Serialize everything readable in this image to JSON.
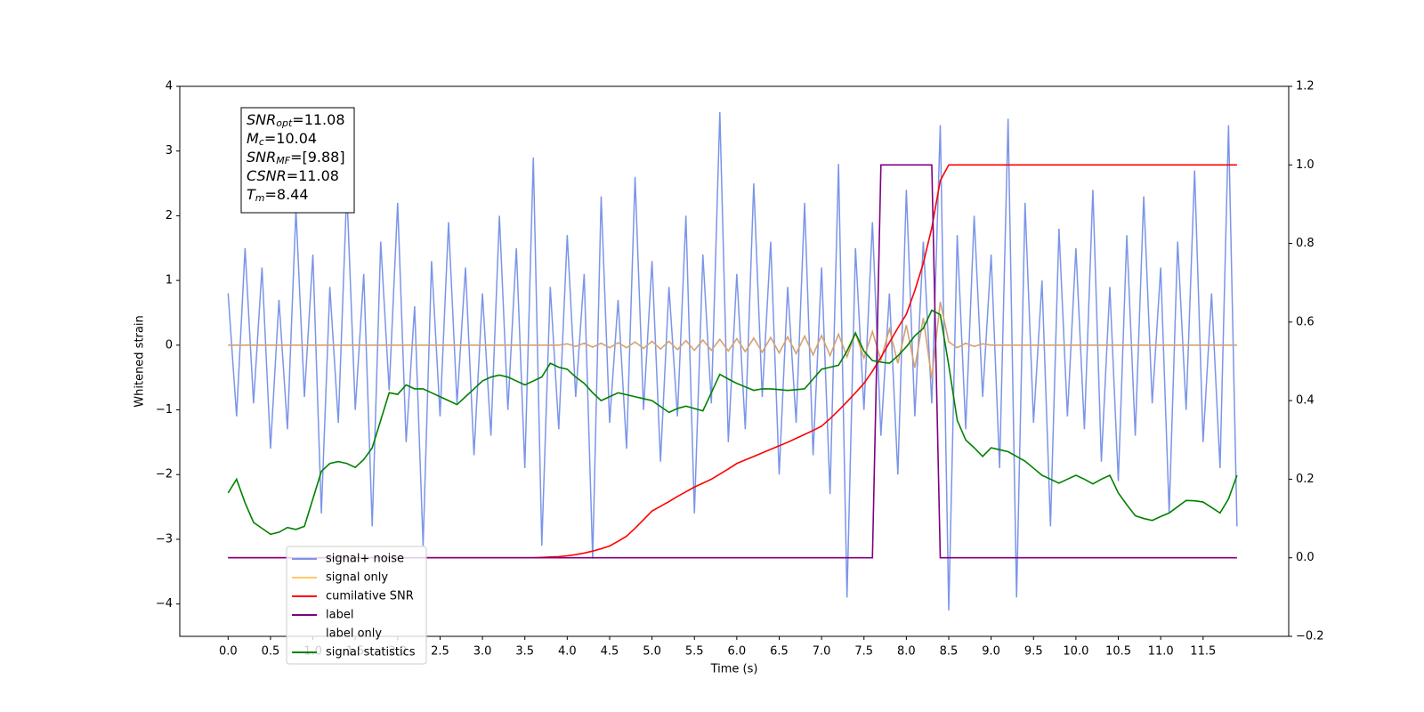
{
  "chart_data": {
    "type": "line",
    "xlabel": "Time (s)",
    "ylabel": "Whitened strain",
    "xlim": [
      -0.57,
      12.51
    ],
    "ylim": [
      -4.5,
      4
    ],
    "y2lim": [
      -0.2,
      1.2
    ],
    "xticks": [
      {
        "value": 0,
        "label": "0.0"
      },
      0.5,
      {
        "value": 1,
        "label": "1.0"
      },
      1.5,
      {
        "value": 2,
        "label": "2.0"
      },
      2.5,
      {
        "value": 3,
        "label": "3.0"
      },
      3.5,
      {
        "value": 4,
        "label": "4.0"
      },
      4.5,
      {
        "value": 5,
        "label": "5.0"
      },
      5.5,
      {
        "value": 6,
        "label": "6.0"
      },
      6.5,
      {
        "value": 7,
        "label": "7.0"
      },
      7.5,
      {
        "value": 8,
        "label": "8.0"
      },
      8.5,
      {
        "value": 9,
        "label": "9.0"
      },
      9.5,
      {
        "value": 10,
        "label": "10.0"
      },
      10.5,
      {
        "value": 11,
        "label": "11.0"
      },
      11.5
    ],
    "yticks": [
      {
        "value": -4,
        "label": "−4"
      },
      {
        "value": -3,
        "label": "−3"
      },
      {
        "value": -2,
        "label": "−2"
      },
      {
        "value": -1,
        "label": "−1"
      },
      0,
      1,
      2,
      3,
      4
    ],
    "y2ticks": [
      {
        "value": -0.2,
        "label": "−0.2"
      },
      {
        "value": 0,
        "label": "0.0"
      },
      0.2,
      0.4,
      0.6,
      0.8,
      {
        "value": 1,
        "label": "1.0"
      },
      1.2
    ],
    "annotations": [
      {
        "text": "SNR",
        "sub": "opt",
        "value": "=11.08"
      },
      {
        "text": "M",
        "sub": "c",
        "value": "=10.04"
      },
      {
        "text": "SNR",
        "sub": "MF",
        "value": "=[9.88]"
      },
      {
        "text": "CSNR",
        "value": "=11.08"
      },
      {
        "text": "T",
        "sub": "m",
        "value": "=8.44"
      }
    ],
    "legend": "lower left",
    "legend_only": [
      "label only"
    ],
    "x": [
      0,
      0.1,
      0.2,
      0.3,
      0.4,
      0.5,
      0.6,
      0.7,
      0.8,
      0.9,
      1,
      1.1,
      1.2,
      1.3,
      1.4,
      1.5,
      1.6,
      1.7,
      1.8,
      1.9,
      2,
      2.1,
      2.2,
      2.3,
      2.4,
      2.5,
      2.6,
      2.7,
      2.8,
      2.9,
      3,
      3.1,
      3.2,
      3.3,
      3.4,
      3.5,
      3.6,
      3.7,
      3.8,
      3.9,
      4,
      4.1,
      4.2,
      4.3,
      4.4,
      4.5,
      4.6,
      4.7,
      4.8,
      4.9,
      5,
      5.1,
      5.2,
      5.3,
      5.4,
      5.5,
      5.6,
      5.7,
      5.8,
      5.9,
      6,
      6.1,
      6.2,
      6.3,
      6.4,
      6.5,
      6.6,
      6.7,
      6.8,
      6.9,
      7,
      7.1,
      7.2,
      7.3,
      7.4,
      7.5,
      7.6,
      7.7,
      7.8,
      7.9,
      8,
      8.1,
      8.2,
      8.3,
      8.4,
      8.5,
      8.6,
      8.7,
      8.8,
      8.9,
      9,
      9.1,
      9.2,
      9.3,
      9.4,
      9.5,
      9.6,
      9.7,
      9.8,
      9.9,
      10,
      10.1,
      10.2,
      10.3,
      10.4,
      10.5,
      10.6,
      10.7,
      10.8,
      10.9,
      11,
      11.1,
      11.2,
      11.3,
      11.4,
      11.5,
      11.6,
      11.7,
      11.8,
      11.9
    ],
    "series": [
      {
        "name": "signal+ noise",
        "color": "#7b95e8",
        "axis": "y",
        "values": [
          0.8,
          -1.1,
          1.5,
          -0.9,
          1.2,
          -1.6,
          0.7,
          -1.3,
          2.1,
          -0.8,
          1.4,
          -2.6,
          0.9,
          -1.2,
          2.4,
          -1.0,
          1.1,
          -2.8,
          1.6,
          -0.7,
          2.2,
          -1.5,
          0.6,
          -3.1,
          1.3,
          -1.1,
          1.9,
          -0.9,
          1.2,
          -1.7,
          0.8,
          -1.4,
          2.0,
          -1.0,
          1.5,
          -1.9,
          2.9,
          -3.1,
          0.9,
          -1.3,
          1.7,
          -0.8,
          1.1,
          -3.3,
          2.3,
          -1.2,
          0.7,
          -1.6,
          2.6,
          -1.0,
          1.3,
          -1.8,
          0.9,
          -1.1,
          2.0,
          -2.6,
          1.4,
          -0.9,
          3.6,
          -1.5,
          1.1,
          -1.3,
          2.5,
          -0.8,
          1.6,
          -2.0,
          0.9,
          -1.2,
          2.2,
          -1.7,
          1.2,
          -2.3,
          2.8,
          -3.9,
          1.5,
          -1.0,
          1.9,
          -1.4,
          0.8,
          -2.0,
          2.4,
          -1.1,
          1.6,
          -0.9,
          3.4,
          -4.1,
          1.7,
          -1.3,
          2.0,
          -0.8,
          1.4,
          -1.9,
          3.5,
          -3.9,
          2.2,
          -1.2,
          1.0,
          -2.8,
          1.8,
          -1.1,
          1.5,
          -1.3,
          2.4,
          -1.8,
          0.9,
          -2.1,
          1.7,
          -1.4,
          2.3,
          -0.9,
          1.2,
          -2.6,
          1.6,
          -1.0,
          2.7,
          -1.5,
          0.8,
          -1.9,
          3.4,
          -2.8
        ]
      },
      {
        "name": "signal only",
        "color": "#d4a273",
        "legend_color": "#ffc966",
        "axis": "y",
        "values": [
          0,
          0,
          0,
          0,
          0,
          0,
          0,
          0,
          0,
          0,
          0,
          0,
          0,
          0,
          0,
          0,
          0,
          0,
          0,
          0,
          0,
          0,
          0,
          0,
          0,
          0,
          0,
          0,
          0,
          0,
          0,
          0,
          0,
          0,
          0,
          0,
          0,
          0,
          0,
          0,
          0.02,
          -0.02,
          0.03,
          -0.03,
          0.03,
          -0.04,
          0.04,
          -0.04,
          0.05,
          -0.05,
          0.06,
          -0.06,
          0.06,
          -0.07,
          0.07,
          -0.08,
          0.08,
          -0.08,
          0.09,
          -0.09,
          0.1,
          -0.1,
          0.11,
          -0.11,
          0.12,
          -0.12,
          0.13,
          -0.13,
          0.14,
          -0.15,
          0.15,
          -0.16,
          0.17,
          -0.18,
          0.19,
          -0.2,
          0.21,
          -0.23,
          0.25,
          -0.28,
          0.31,
          -0.35,
          0.42,
          -0.52,
          0.67,
          0.05,
          -0.04,
          0.03,
          -0.02,
          0.02,
          0,
          0,
          0,
          0,
          0,
          0,
          0,
          0,
          0,
          0,
          0,
          0,
          0,
          0,
          0,
          0,
          0,
          0,
          0,
          0,
          0,
          0,
          0,
          0,
          0,
          0,
          0,
          0,
          0,
          0
        ]
      },
      {
        "name": "cumilative SNR",
        "color": "#ff0000",
        "axis": "y2",
        "values": [
          0,
          0,
          0,
          0,
          0,
          0,
          0,
          0,
          0,
          0,
          0,
          0,
          0,
          0,
          0,
          0,
          0,
          0,
          0,
          0,
          0,
          0,
          0,
          0,
          0,
          0,
          0,
          0,
          0,
          0,
          0,
          0,
          0,
          0,
          0,
          0,
          0,
          0.001,
          0.002,
          0.003,
          0.005,
          0.008,
          0.012,
          0.017,
          0.023,
          0.03,
          0.042,
          0.055,
          0.075,
          0.097,
          0.119,
          0.131,
          0.143,
          0.156,
          0.168,
          0.18,
          0.19,
          0.2,
          0.213,
          0.226,
          0.24,
          0.249,
          0.258,
          0.267,
          0.276,
          0.285,
          0.294,
          0.304,
          0.314,
          0.324,
          0.335,
          0.354,
          0.375,
          0.397,
          0.42,
          0.444,
          0.475,
          0.51,
          0.548,
          0.585,
          0.62,
          0.68,
          0.75,
          0.84,
          0.96,
          1,
          1,
          1,
          1,
          1,
          1,
          1,
          1,
          1,
          1,
          1,
          1,
          1,
          1,
          1,
          1,
          1,
          1,
          1,
          1,
          1,
          1,
          1,
          1,
          1,
          1,
          1,
          1,
          1,
          1,
          1,
          1,
          1,
          1,
          1
        ]
      },
      {
        "name": "label",
        "color": "#800080",
        "axis": "y2",
        "values": [
          0,
          0,
          0,
          0,
          0,
          0,
          0,
          0,
          0,
          0,
          0,
          0,
          0,
          0,
          0,
          0,
          0,
          0,
          0,
          0,
          0,
          0,
          0,
          0,
          0,
          0,
          0,
          0,
          0,
          0,
          0,
          0,
          0,
          0,
          0,
          0,
          0,
          0,
          0,
          0,
          0,
          0,
          0,
          0,
          0,
          0,
          0,
          0,
          0,
          0,
          0,
          0,
          0,
          0,
          0,
          0,
          0,
          0,
          0,
          0,
          0,
          0,
          0,
          0,
          0,
          0,
          0,
          0,
          0,
          0,
          0,
          0,
          0,
          0,
          0,
          0,
          0,
          1,
          1,
          1,
          1,
          1,
          1,
          1,
          0,
          0,
          0,
          0,
          0,
          0,
          0,
          0,
          0,
          0,
          0,
          0,
          0,
          0,
          0,
          0,
          0,
          0,
          0,
          0,
          0,
          0,
          0,
          0,
          0,
          0,
          0,
          0,
          0,
          0,
          0,
          0,
          0,
          0,
          0,
          0
        ]
      },
      {
        "name": "signal statistics",
        "color": "#008000",
        "axis": "y2",
        "values": [
          0.165,
          0.2,
          0.14,
          0.09,
          0.075,
          0.06,
          0.065,
          0.077,
          0.072,
          0.08,
          0.15,
          0.22,
          0.24,
          0.245,
          0.24,
          0.23,
          0.25,
          0.28,
          0.35,
          0.42,
          0.416,
          0.44,
          0.43,
          0.43,
          0.42,
          0.41,
          0.4,
          0.39,
          0.41,
          0.43,
          0.45,
          0.46,
          0.465,
          0.46,
          0.45,
          0.44,
          0.45,
          0.46,
          0.495,
          0.485,
          0.48,
          0.46,
          0.444,
          0.42,
          0.4,
          0.41,
          0.42,
          0.415,
          0.41,
          0.405,
          0.4,
          0.385,
          0.37,
          0.38,
          0.386,
          0.38,
          0.374,
          0.42,
          0.467,
          0.455,
          0.444,
          0.435,
          0.426,
          0.43,
          0.43,
          0.428,
          0.426,
          0.428,
          0.43,
          0.455,
          0.48,
          0.485,
          0.49,
          0.526,
          0.572,
          0.526,
          0.502,
          0.498,
          0.495,
          0.514,
          0.537,
          0.565,
          0.584,
          0.63,
          0.619,
          0.49,
          0.35,
          0.3,
          0.28,
          0.258,
          0.28,
          0.275,
          0.27,
          0.258,
          0.246,
          0.228,
          0.21,
          0.2,
          0.19,
          0.2,
          0.21,
          0.2,
          0.188,
          0.2,
          0.21,
          0.165,
          0.135,
          0.107,
          0.1,
          0.095,
          0.105,
          0.114,
          0.13,
          0.146,
          0.145,
          0.142,
          0.128,
          0.114,
          0.15,
          0.21
        ]
      }
    ]
  }
}
